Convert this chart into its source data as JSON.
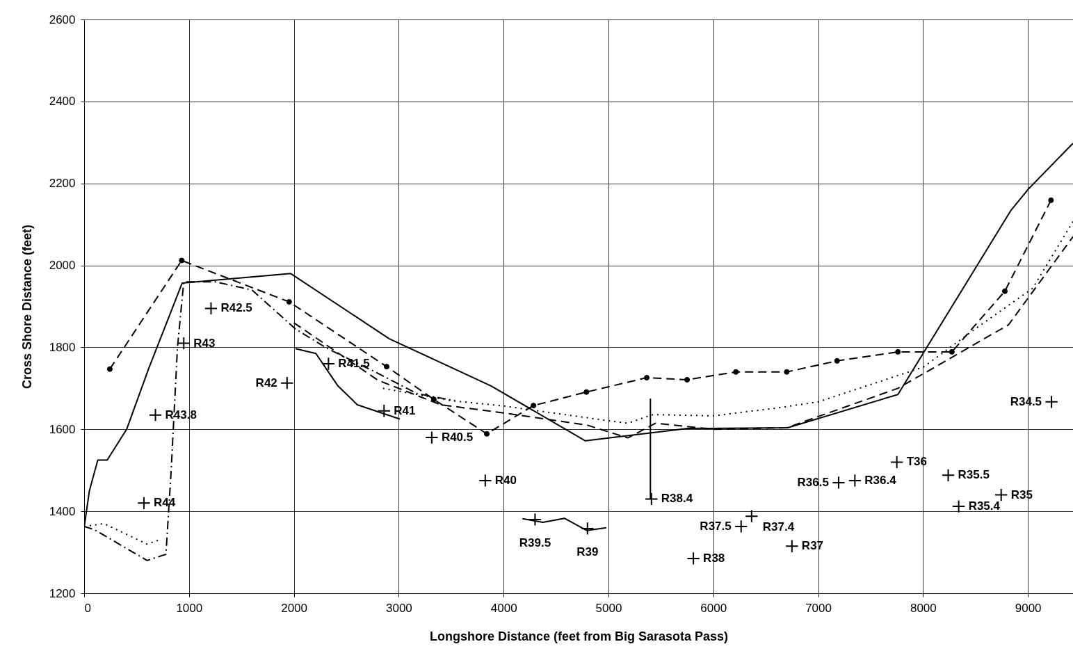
{
  "chart_data": {
    "type": "line",
    "xlabel": "Longshore Distance (feet from Big Sarasota Pass)",
    "ylabel": "Cross Shore Distance (feet)",
    "xlim": [
      0,
      9430
    ],
    "ylim": [
      1200,
      2600
    ],
    "xticks": [
      0,
      1000,
      2000,
      3000,
      4000,
      5000,
      6000,
      7000,
      8000,
      9000
    ],
    "yticks": [
      1200,
      1400,
      1600,
      1800,
      2000,
      2200,
      2400,
      2600
    ],
    "grid": true,
    "series": [
      {
        "color": "#000000",
        "line_style": "solid",
        "marker": "none",
        "x": [
          0,
          0,
          0,
          50,
          130,
          220,
          405,
          615,
          935,
          1970,
          2910,
          3880,
          4780,
          5755,
          6710,
          7760,
          8840,
          9000,
          9430
        ],
        "values": [
          1200,
          1250,
          1360,
          1450,
          1525,
          1525,
          1600,
          1748,
          1957,
          1980,
          1821,
          1706,
          1572,
          1602,
          1604,
          1685,
          2135,
          2185,
          2298
        ]
      },
      {
        "color": "#000000",
        "line_style": "dashed",
        "marker": "circle",
        "x": [
          245,
          930,
          1955,
          2885,
          3335,
          3840,
          4285,
          4790,
          5365,
          5750,
          6215,
          6700,
          7180,
          7760,
          8275,
          8780,
          9220
        ],
        "values": [
          1747,
          2012,
          1911,
          1753,
          1673,
          1589,
          1658,
          1691,
          1726,
          1721,
          1740,
          1740,
          1767,
          1789,
          1789,
          1937,
          2159
        ]
      },
      {
        "color": "#000000",
        "line_style": "dotted",
        "marker": "none",
        "x": [
          0,
          190,
          600,
          715
        ],
        "values": [
          1363,
          1370,
          1320,
          1330
        ]
      },
      {
        "color": "#000000",
        "line_style": "dotted",
        "marker": "none",
        "x": [
          2850,
          3500,
          4000,
          4995,
          5185,
          5425,
          6000,
          6605,
          7000,
          8005,
          8470,
          9045,
          9430
        ],
        "values": [
          1700,
          1670,
          1657,
          1621,
          1615,
          1636,
          1633,
          1652,
          1667,
          1752,
          1840,
          1944,
          2107
        ]
      },
      {
        "color": "#000000",
        "line_style": "dashdot",
        "marker": "none",
        "x": [
          0,
          100,
          600,
          780,
          830,
          890,
          950,
          1250,
          1600,
          2015,
          2320,
          2800,
          3175,
          3535
        ],
        "values": [
          1363,
          1355,
          1280,
          1295,
          1500,
          1800,
          1960,
          1960,
          1940,
          1845,
          1797,
          1737,
          1687,
          1670
        ]
      },
      {
        "color": "#000000",
        "line_style": "dashed",
        "marker": "none",
        "x": [
          2000,
          2800,
          3400,
          4000,
          4800,
          5185,
          5450,
          6000,
          6700,
          7760,
          8815,
          9430
        ],
        "values": [
          1860,
          1720,
          1660,
          1640,
          1610,
          1579,
          1615,
          1600,
          1604,
          1700,
          1855,
          2070
        ]
      },
      {
        "color": "#000000",
        "line_style": "solid",
        "marker": "none",
        "x": [
          2015,
          2210,
          2420,
          2605,
          3010
        ],
        "values": [
          1797,
          1785,
          1706,
          1660,
          1625
        ]
      },
      {
        "color": "#000000",
        "line_style": "solid",
        "marker": "none",
        "x": [
          4180,
          4375,
          4580,
          4795,
          4980
        ],
        "values": [
          1382,
          1373,
          1383,
          1353,
          1360
        ]
      },
      {
        "color": "#000000",
        "line_style": "solid",
        "marker": "none",
        "x": [
          5400,
          5400
        ],
        "values": [
          1675,
          1430
        ]
      },
      {
        "type": "scatter",
        "color": "#000000",
        "marker": "cross",
        "x": [
          570,
          680,
          950,
          1210,
          1935,
          2330,
          2860,
          3315,
          3825,
          4300,
          4800,
          5410,
          5810,
          6265,
          6365,
          6750,
          7195,
          7350,
          7750,
          8240,
          8340,
          8745,
          9225
        ],
        "values": [
          1420,
          1635,
          1810,
          1895,
          1713,
          1760,
          1645,
          1580,
          1475,
          1380,
          1358,
          1430,
          1285,
          1363,
          1388,
          1315,
          1470,
          1475,
          1520,
          1488,
          1412,
          1440,
          1667
        ]
      }
    ],
    "annotations": [
      {
        "text": "R44",
        "x": 570,
        "y": 1420
      },
      {
        "text": "R43.8",
        "x": 680,
        "y": 1635
      },
      {
        "text": "R43",
        "x": 950,
        "y": 1810
      },
      {
        "text": "R42.5",
        "x": 1210,
        "y": 1895
      },
      {
        "text": "R42",
        "x": 1935,
        "y": 1713
      },
      {
        "text": "R41.5",
        "x": 2330,
        "y": 1760
      },
      {
        "text": "R41",
        "x": 2860,
        "y": 1645
      },
      {
        "text": "R40.5",
        "x": 3315,
        "y": 1580
      },
      {
        "text": "R40",
        "x": 3825,
        "y": 1475
      },
      {
        "text": "R39.5",
        "x": 4300,
        "y": 1380
      },
      {
        "text": "R39",
        "x": 4800,
        "y": 1358
      },
      {
        "text": "R38.4",
        "x": 5410,
        "y": 1430
      },
      {
        "text": "R38",
        "x": 5810,
        "y": 1285
      },
      {
        "text": "R37.5",
        "x": 6265,
        "y": 1363
      },
      {
        "text": "R37.4",
        "x": 6365,
        "y": 1388
      },
      {
        "text": "R37",
        "x": 6750,
        "y": 1315
      },
      {
        "text": "R36.5",
        "x": 7195,
        "y": 1470
      },
      {
        "text": "R36.4",
        "x": 7350,
        "y": 1475
      },
      {
        "text": "T36",
        "x": 7750,
        "y": 1520
      },
      {
        "text": "R35.5",
        "x": 8240,
        "y": 1488
      },
      {
        "text": "R35.4",
        "x": 8340,
        "y": 1412
      },
      {
        "text": "R35",
        "x": 8745,
        "y": 1440
      },
      {
        "text": "R34.5",
        "x": 9225,
        "y": 1667
      }
    ]
  }
}
